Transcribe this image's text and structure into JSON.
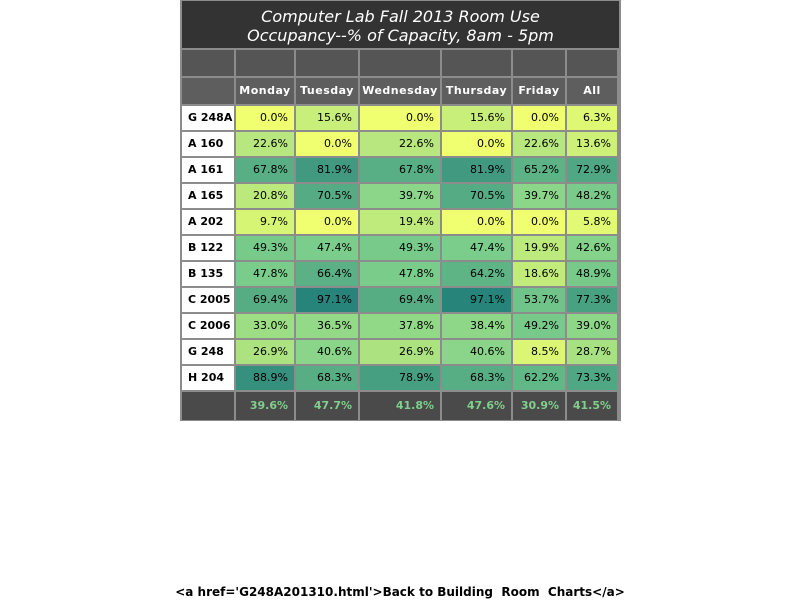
{
  "title": {
    "line1": "Computer Lab Fall 2013   Room Use",
    "line2": "Occupancy--% of Capacity, 8am - 5pm"
  },
  "chart_data": {
    "type": "heatmap",
    "columns": [
      "Monday",
      "Tuesday",
      "Wednesday",
      "Thursday",
      "Friday",
      "All"
    ],
    "rows": [
      {
        "room": "G 248A",
        "values": [
          "0.0%",
          "15.6%",
          "0.0%",
          "15.6%",
          "0.0%",
          "6.3%"
        ]
      },
      {
        "room": "A 160",
        "values": [
          "22.6%",
          "0.0%",
          "22.6%",
          "0.0%",
          "22.6%",
          "13.6%"
        ]
      },
      {
        "room": "A 161",
        "values": [
          "67.8%",
          "81.9%",
          "67.8%",
          "81.9%",
          "65.2%",
          "72.9%"
        ]
      },
      {
        "room": "A 165",
        "values": [
          "20.8%",
          "70.5%",
          "39.7%",
          "70.5%",
          "39.7%",
          "48.2%"
        ]
      },
      {
        "room": "A 202",
        "values": [
          "9.7%",
          "0.0%",
          "19.4%",
          "0.0%",
          "0.0%",
          "5.8%"
        ]
      },
      {
        "room": "B 122",
        "values": [
          "49.3%",
          "47.4%",
          "49.3%",
          "47.4%",
          "19.9%",
          "42.6%"
        ]
      },
      {
        "room": "B 135",
        "values": [
          "47.8%",
          "66.4%",
          "47.8%",
          "64.2%",
          "18.6%",
          "48.9%"
        ]
      },
      {
        "room": "C 2005",
        "values": [
          "69.4%",
          "97.1%",
          "69.4%",
          "97.1%",
          "53.7%",
          "77.3%"
        ]
      },
      {
        "room": "C 2006",
        "values": [
          "33.0%",
          "36.5%",
          "37.8%",
          "38.4%",
          "49.2%",
          "39.0%"
        ]
      },
      {
        "room": "G 248",
        "values": [
          "26.9%",
          "40.6%",
          "26.9%",
          "40.6%",
          "8.5%",
          "28.7%"
        ]
      },
      {
        "room": "H 204",
        "values": [
          "88.9%",
          "68.3%",
          "78.9%",
          "68.3%",
          "62.2%",
          "73.3%"
        ]
      }
    ],
    "totals": [
      "39.6%",
      "47.7%",
      "41.8%",
      "47.6%",
      "30.9%",
      "41.5%"
    ],
    "color_scale": {
      "low": "#efff6f",
      "mid": "#7fd08c",
      "high": "#22807a"
    }
  },
  "footer": {
    "link_text": "<a href='G248A201310.html'>Back to Building  Room  Charts</a>"
  }
}
